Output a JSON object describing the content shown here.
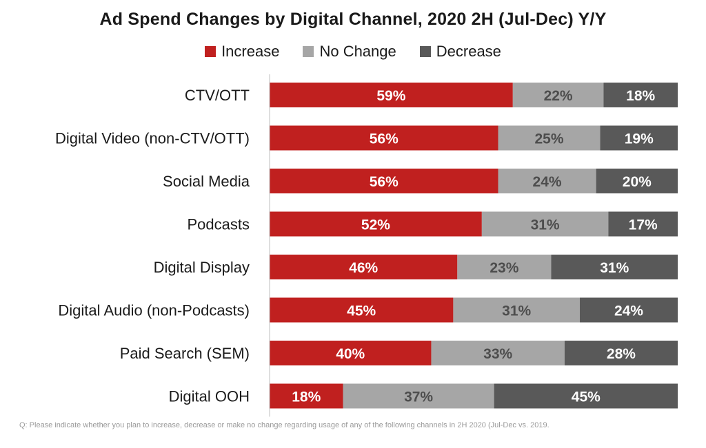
{
  "chart_data": {
    "type": "bar",
    "orientation": "horizontal",
    "stacked": true,
    "title": "Ad Spend Changes by Digital Channel, 2020 2H (Jul-Dec) Y/Y",
    "categories": [
      "CTV/OTT",
      "Digital Video (non-CTV/OTT)",
      "Social Media",
      "Podcasts",
      "Digital Display",
      "Digital Audio (non-Podcasts)",
      "Paid Search (SEM)",
      "Digital OOH"
    ],
    "series": [
      {
        "name": "Increase",
        "color": "#c0201f",
        "label_color": "#ffffff",
        "values": [
          59,
          56,
          56,
          52,
          46,
          45,
          40,
          18
        ]
      },
      {
        "name": "No Change",
        "color": "#a6a6a6",
        "label_color": "#4d4d4d",
        "values": [
          22,
          25,
          24,
          31,
          23,
          31,
          33,
          37
        ]
      },
      {
        "name": "Decrease",
        "color": "#595959",
        "label_color": "#ffffff",
        "values": [
          18,
          19,
          20,
          17,
          31,
          24,
          28,
          45
        ]
      }
    ],
    "value_suffix": "%",
    "legend_position": "top-center",
    "grid": false,
    "footnote": "Q: Please indicate whether you plan to increase, decrease or make no change regarding usage of any of the following channels in 2H 2020 (Jul-Dec vs. 2019."
  }
}
